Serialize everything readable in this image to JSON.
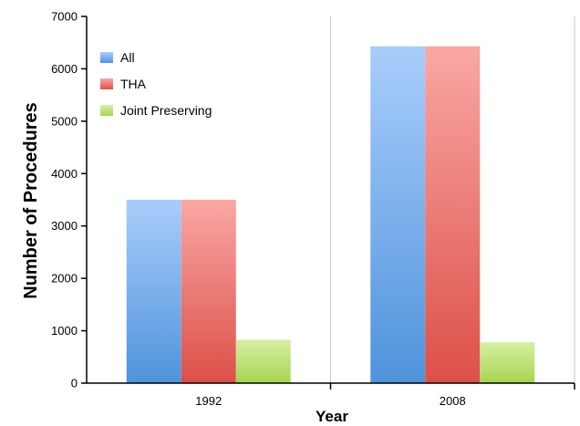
{
  "chart_data": {
    "type": "bar",
    "title": "",
    "xlabel": "Year",
    "ylabel": "Number of Procedures",
    "categories": [
      "1992",
      "2008"
    ],
    "ylim": [
      0,
      7000
    ],
    "yticks": [
      "0",
      "1000",
      "2000",
      "3000",
      "4000",
      "5000",
      "6000",
      "7000"
    ],
    "series": [
      {
        "name": "All",
        "values": [
          3500,
          6430
        ]
      },
      {
        "name": "THA",
        "values": [
          3500,
          6430
        ]
      },
      {
        "name": "Joint Preserving",
        "values": [
          830,
          780
        ]
      }
    ],
    "colors": {
      "All": [
        "#a9cdfb",
        "#4f93db"
      ],
      "THA": [
        "#f9a7a4",
        "#dc5048"
      ],
      "Joint Preserving": [
        "#d6f0a2",
        "#a8d452"
      ]
    },
    "grid": "vertical separator between categories",
    "legend_position": "top-left"
  }
}
